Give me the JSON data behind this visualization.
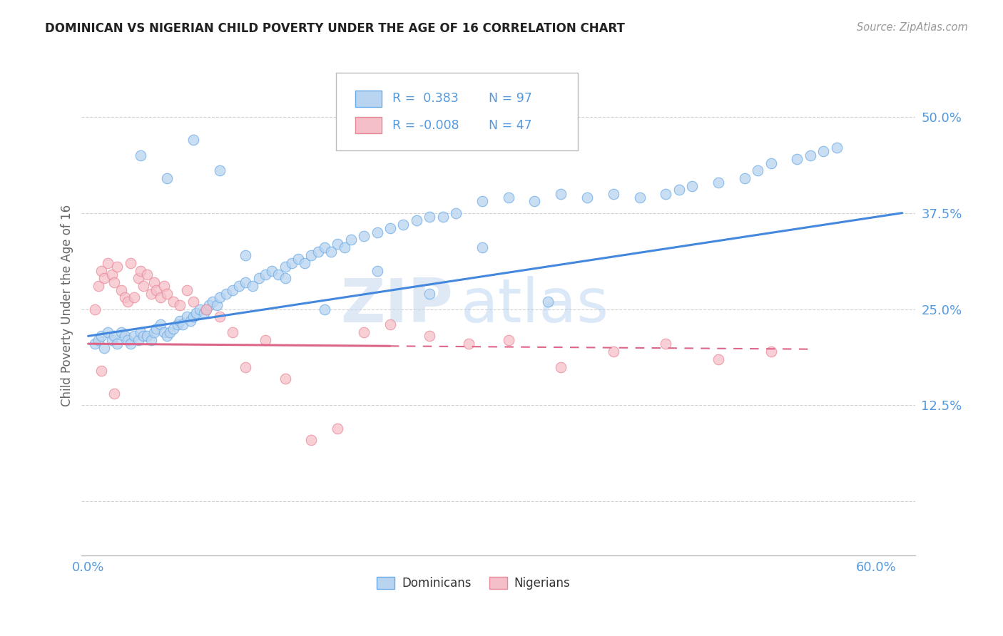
{
  "title": "DOMINICAN VS NIGERIAN CHILD POVERTY UNDER THE AGE OF 16 CORRELATION CHART",
  "source": "Source: ZipAtlas.com",
  "ylabel": "Child Poverty Under the Age of 16",
  "xlim": [
    -0.005,
    0.63
  ],
  "ylim": [
    -0.07,
    0.58
  ],
  "yticks": [
    0.0,
    0.125,
    0.25,
    0.375,
    0.5
  ],
  "ytick_labels": [
    "",
    "12.5%",
    "25.0%",
    "37.5%",
    "50.0%"
  ],
  "xticks": [
    0.0,
    0.1,
    0.2,
    0.3,
    0.4,
    0.5,
    0.6
  ],
  "xtick_labels": [
    "0.0%",
    "",
    "",
    "",
    "",
    "",
    "60.0%"
  ],
  "grid_color": "#cccccc",
  "background_color": "#ffffff",
  "dominicans_fill": "#b8d4f0",
  "dominicans_edge": "#6aaae8",
  "nigerians_fill": "#f5bfc8",
  "nigerians_edge": "#e88898",
  "dom_line_color": "#4488dd",
  "nig_line_color": "#dd6688",
  "tick_color": "#5599dd",
  "dom_r": 0.383,
  "nig_r": -0.008,
  "dom_n": 97,
  "nig_n": 47,
  "dom_line_x0": 0.0,
  "dom_line_x1": 0.62,
  "dom_line_y0": 0.215,
  "dom_line_y1": 0.375,
  "nig_line_x0": 0.0,
  "nig_line_x1": 0.55,
  "nig_line_y0": 0.205,
  "nig_line_y1": 0.198,
  "watermark_zip": "ZIP",
  "watermark_atlas": "atlas",
  "dom_scatter_x": [
    0.005,
    0.008,
    0.01,
    0.012,
    0.015,
    0.018,
    0.02,
    0.022,
    0.025,
    0.028,
    0.03,
    0.032,
    0.035,
    0.038,
    0.04,
    0.042,
    0.045,
    0.048,
    0.05,
    0.052,
    0.055,
    0.058,
    0.06,
    0.062,
    0.065,
    0.068,
    0.07,
    0.072,
    0.075,
    0.078,
    0.08,
    0.082,
    0.085,
    0.088,
    0.09,
    0.092,
    0.095,
    0.098,
    0.1,
    0.105,
    0.11,
    0.115,
    0.12,
    0.125,
    0.13,
    0.135,
    0.14,
    0.145,
    0.15,
    0.155,
    0.16,
    0.165,
    0.17,
    0.175,
    0.18,
    0.185,
    0.19,
    0.195,
    0.2,
    0.21,
    0.22,
    0.23,
    0.24,
    0.25,
    0.26,
    0.27,
    0.28,
    0.3,
    0.32,
    0.34,
    0.36,
    0.38,
    0.4,
    0.42,
    0.44,
    0.45,
    0.46,
    0.48,
    0.5,
    0.51,
    0.52,
    0.54,
    0.55,
    0.56,
    0.57,
    0.04,
    0.06,
    0.08,
    0.1,
    0.12,
    0.15,
    0.18,
    0.22,
    0.26,
    0.3,
    0.35
  ],
  "dom_scatter_y": [
    0.205,
    0.21,
    0.215,
    0.2,
    0.22,
    0.21,
    0.215,
    0.205,
    0.22,
    0.215,
    0.21,
    0.205,
    0.215,
    0.21,
    0.22,
    0.215,
    0.215,
    0.21,
    0.22,
    0.225,
    0.23,
    0.22,
    0.215,
    0.22,
    0.225,
    0.23,
    0.235,
    0.23,
    0.24,
    0.235,
    0.24,
    0.245,
    0.25,
    0.245,
    0.25,
    0.255,
    0.26,
    0.255,
    0.265,
    0.27,
    0.275,
    0.28,
    0.285,
    0.28,
    0.29,
    0.295,
    0.3,
    0.295,
    0.305,
    0.31,
    0.315,
    0.31,
    0.32,
    0.325,
    0.33,
    0.325,
    0.335,
    0.33,
    0.34,
    0.345,
    0.35,
    0.355,
    0.36,
    0.365,
    0.37,
    0.37,
    0.375,
    0.39,
    0.395,
    0.39,
    0.4,
    0.395,
    0.4,
    0.395,
    0.4,
    0.405,
    0.41,
    0.415,
    0.42,
    0.43,
    0.44,
    0.445,
    0.45,
    0.455,
    0.46,
    0.45,
    0.42,
    0.47,
    0.43,
    0.32,
    0.29,
    0.25,
    0.3,
    0.27,
    0.33,
    0.26
  ],
  "nig_scatter_x": [
    0.005,
    0.008,
    0.01,
    0.012,
    0.015,
    0.018,
    0.02,
    0.022,
    0.025,
    0.028,
    0.03,
    0.032,
    0.035,
    0.038,
    0.04,
    0.042,
    0.045,
    0.048,
    0.05,
    0.052,
    0.055,
    0.058,
    0.06,
    0.065,
    0.07,
    0.075,
    0.08,
    0.09,
    0.1,
    0.11,
    0.12,
    0.135,
    0.15,
    0.17,
    0.19,
    0.21,
    0.23,
    0.26,
    0.29,
    0.32,
    0.36,
    0.4,
    0.44,
    0.48,
    0.52,
    0.01,
    0.02
  ],
  "nig_scatter_y": [
    0.25,
    0.28,
    0.3,
    0.29,
    0.31,
    0.295,
    0.285,
    0.305,
    0.275,
    0.265,
    0.26,
    0.31,
    0.265,
    0.29,
    0.3,
    0.28,
    0.295,
    0.27,
    0.285,
    0.275,
    0.265,
    0.28,
    0.27,
    0.26,
    0.255,
    0.275,
    0.26,
    0.25,
    0.24,
    0.22,
    0.175,
    0.21,
    0.16,
    0.08,
    0.095,
    0.22,
    0.23,
    0.215,
    0.205,
    0.21,
    0.175,
    0.195,
    0.205,
    0.185,
    0.195,
    0.17,
    0.14
  ]
}
